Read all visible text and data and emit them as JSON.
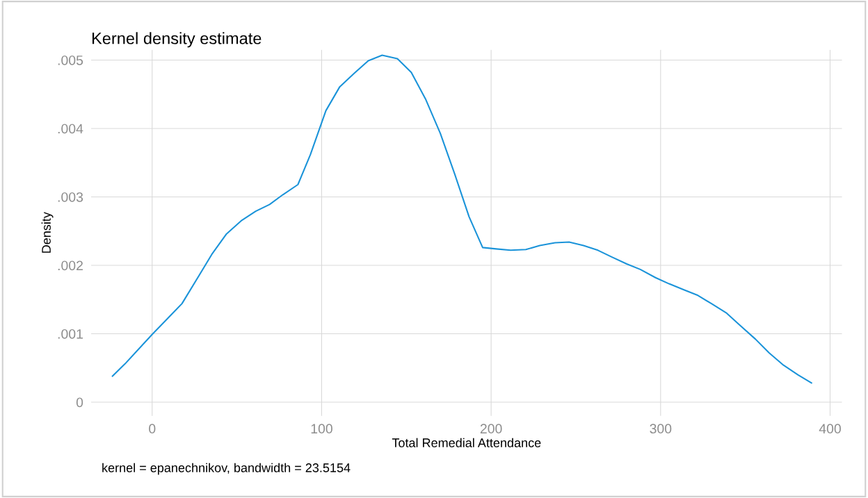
{
  "chart_data": {
    "type": "line",
    "title": "Kernel density estimate",
    "xlabel": "Total Remedial Attendance",
    "ylabel": "Density",
    "annotations": [
      "kernel = epanechnikov, bandwidth = 23.5154"
    ],
    "grid": true,
    "marker": "none",
    "line_style": "solid",
    "xlim": [
      -36,
      407
    ],
    "ylim": [
      -0.0002,
      0.00515
    ],
    "xticks": [
      0,
      100,
      200,
      300,
      400
    ],
    "yticks": [
      {
        "value": 0,
        "label": "0"
      },
      {
        "value": 0.001,
        "label": ".001"
      },
      {
        "value": 0.002,
        "label": ".002"
      },
      {
        "value": 0.003,
        "label": ".003"
      },
      {
        "value": 0.004,
        "label": ".004"
      },
      {
        "value": 0.005,
        "label": ".005"
      }
    ],
    "series": [
      {
        "color": "#1a93d9",
        "x": [
          -23.4,
          -16,
          0,
          17.6,
          27.9,
          35.2,
          43.9,
          52.5,
          61.1,
          69.3,
          77,
          86,
          93.4,
          102.5,
          110.7,
          118.9,
          127.5,
          135.7,
          144.7,
          152.9,
          161.5,
          170,
          178.7,
          187,
          195,
          203,
          211.5,
          220.5,
          228.7,
          237.7,
          246,
          254.5,
          263,
          271.3,
          280,
          288,
          297,
          305,
          314,
          322,
          330,
          339,
          347,
          356,
          364,
          372,
          381,
          389
        ],
        "values": [
          0.00038,
          0.00056,
          0.00099,
          0.00144,
          0.00186,
          0.00216,
          0.00246,
          0.00265,
          0.00279,
          0.00289,
          0.00303,
          0.00318,
          0.00362,
          0.00426,
          0.00461,
          0.0048,
          0.00499,
          0.00507,
          0.00502,
          0.00482,
          0.00442,
          0.00393,
          0.00332,
          0.00271,
          0.00226,
          0.00224,
          0.00222,
          0.00223,
          0.00229,
          0.00233,
          0.00234,
          0.00229,
          0.00222,
          0.00212,
          0.00202,
          0.00194,
          0.00182,
          0.00173,
          0.00164,
          0.00156,
          0.00144,
          0.0013,
          0.00112,
          0.00092,
          0.00072,
          0.00055,
          0.0004,
          0.00028
        ]
      }
    ]
  }
}
